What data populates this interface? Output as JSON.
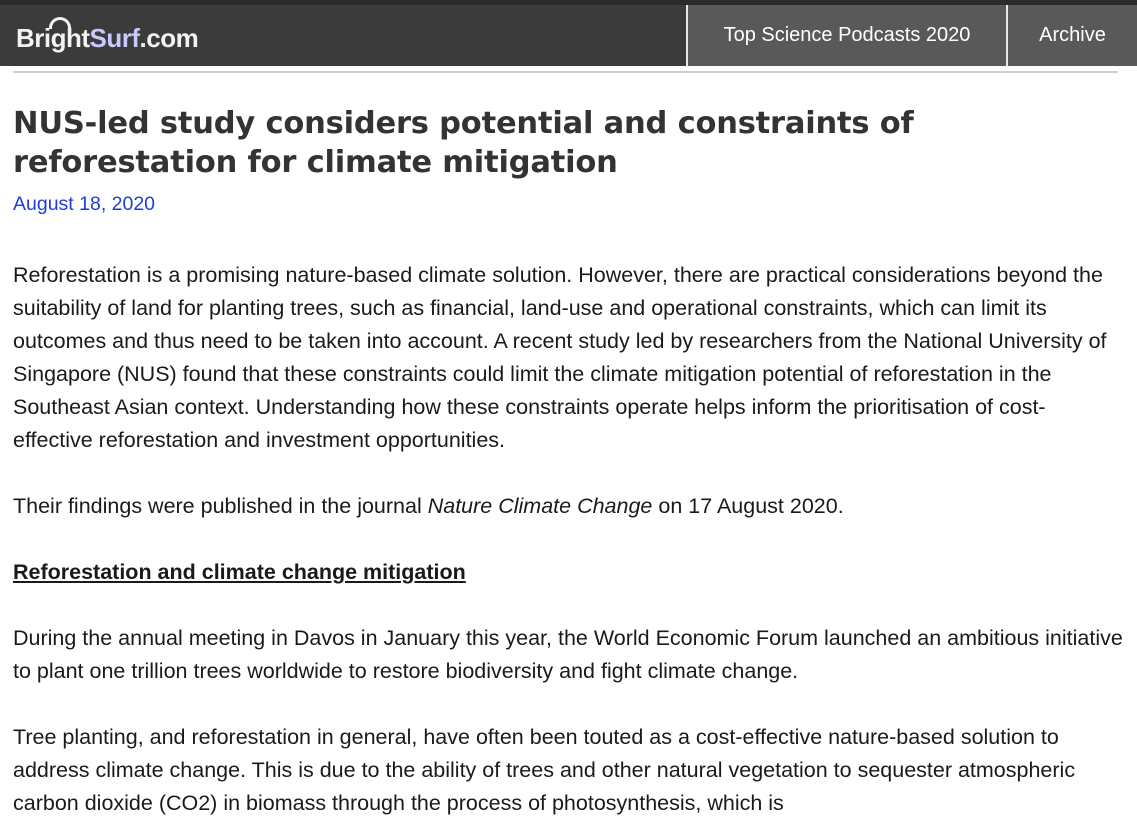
{
  "header": {
    "logo_bright": "Bright",
    "logo_surf": "Surf",
    "logo_tld": ".com",
    "nav": [
      {
        "label": "Top Science Podcasts 2020"
      },
      {
        "label": "Archive"
      }
    ]
  },
  "article": {
    "title": "NUS-led study considers potential and constraints of reforestation for climate mitigation",
    "date": "August 18, 2020",
    "paragraph1": "Reforestation is a promising nature-based climate solution. However, there are practical considerations beyond the suitability of land for planting trees, such as financial, land-use and operational constraints, which can limit its outcomes and thus need to be taken into account. A recent study led by researchers from the National University of Singapore (NUS) found that these constraints could limit the climate mitigation potential of reforestation in the Southeast Asian context. Understanding how these constraints operate helps inform the prioritisation of cost-effective reforestation and investment opportunities.",
    "paragraph2_before": "Their findings were published in the journal ",
    "paragraph2_journal": "Nature Climate Change",
    "paragraph2_after": " on 17 August 2020.",
    "subheading": "Reforestation and climate change mitigation",
    "paragraph3": "During the annual meeting in Davos in January this year, the World Economic Forum launched an ambitious initiative to plant one trillion trees worldwide to restore biodiversity and fight climate change.",
    "paragraph4": "Tree planting, and reforestation in general, have often been touted as a cost-effective nature-based solution to address climate change. This is due to the ability of trees and other natural vegetation to sequester atmospheric carbon dioxide (CO2) in biomass through the process of photosynthesis, which is"
  },
  "colors": {
    "header_bg": "#3b3b3b",
    "nav_bg": "#595959",
    "date_link": "#1f3ddb",
    "title": "#333333"
  }
}
